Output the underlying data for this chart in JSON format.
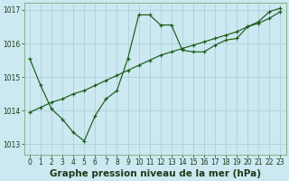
{
  "title": "Graphe pression niveau de la mer (hPa)",
  "bg_color": "#cce8f0",
  "grid_color": "#a8ccd8",
  "line_color": "#1a5c1a",
  "xlim": [
    -0.5,
    23.5
  ],
  "ylim": [
    1012.7,
    1017.2
  ],
  "yticks": [
    1013,
    1014,
    1015,
    1016,
    1017
  ],
  "xticks": [
    0,
    1,
    2,
    3,
    4,
    5,
    6,
    7,
    8,
    9,
    10,
    11,
    12,
    13,
    14,
    15,
    16,
    17,
    18,
    19,
    20,
    21,
    22,
    23
  ],
  "series1_x": [
    0,
    1,
    2,
    3,
    4,
    5,
    6,
    7,
    8,
    9,
    10,
    11,
    12,
    13,
    14,
    15,
    16,
    17,
    18,
    19,
    20,
    21,
    22,
    23
  ],
  "series1_y": [
    1015.55,
    1014.75,
    1014.05,
    1013.75,
    1013.35,
    1013.1,
    1013.85,
    1014.35,
    1014.6,
    1015.55,
    1016.85,
    1016.85,
    1016.55,
    1016.55,
    1015.8,
    1015.75,
    1015.75,
    1015.95,
    1016.1,
    1016.15,
    1016.5,
    1016.65,
    1016.95,
    1017.05
  ],
  "series2_x": [
    0,
    1,
    2,
    3,
    4,
    5,
    6,
    7,
    8,
    9,
    10,
    11,
    12,
    13,
    14,
    15,
    16,
    17,
    18,
    19,
    20,
    21,
    22,
    23
  ],
  "series2_y": [
    1013.95,
    1014.1,
    1014.25,
    1014.35,
    1014.5,
    1014.6,
    1014.75,
    1014.9,
    1015.05,
    1015.2,
    1015.35,
    1015.5,
    1015.65,
    1015.75,
    1015.85,
    1015.95,
    1016.05,
    1016.15,
    1016.25,
    1016.35,
    1016.5,
    1016.6,
    1016.75,
    1016.95
  ],
  "title_fontsize": 7.5,
  "tick_fontsize": 5.5
}
